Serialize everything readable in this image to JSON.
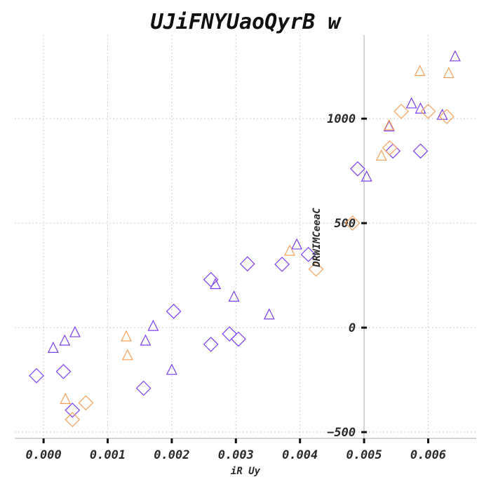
{
  "chart_data": {
    "type": "scatter",
    "title": "UJiFNYUaoQyrB w",
    "xlabel": "iR Uy",
    "ylabel": "DRWIMCeeaC",
    "xlim": [
      -0.00045,
      0.00675
    ],
    "ylim": [
      -530,
      1400
    ],
    "xticks": [
      {
        "value": 0.0,
        "label": "0.000"
      },
      {
        "value": 0.001,
        "label": "0.001"
      },
      {
        "value": 0.002,
        "label": "0.002"
      },
      {
        "value": 0.003,
        "label": "0.003"
      },
      {
        "value": 0.004,
        "label": "0.004"
      },
      {
        "value": 0.005,
        "label": "0.005"
      },
      {
        "value": 0.006,
        "label": "0.006"
      }
    ],
    "yticks": [
      {
        "value": -500,
        "label": "−500"
      },
      {
        "value": 0,
        "label": "0"
      },
      {
        "value": 500,
        "label": "500"
      },
      {
        "value": 1000,
        "label": "1000"
      }
    ],
    "y_axis_at_x": 0.005,
    "grid": true,
    "colors": {
      "purple": "#7b3ff2",
      "orange": "#f5a05a",
      "grid": "#cccccc",
      "axis": "#bbbbbb",
      "text": "#2a2a2a"
    },
    "series": [
      {
        "marker": "diamond",
        "color": "#7b3ff2",
        "points": [
          {
            "x": -0.00011,
            "y": -230
          },
          {
            "x": 0.00031,
            "y": -210
          },
          {
            "x": 0.00045,
            "y": -395
          },
          {
            "x": 0.00156,
            "y": -290
          },
          {
            "x": 0.00203,
            "y": 78
          },
          {
            "x": 0.00261,
            "y": 230
          },
          {
            "x": 0.00261,
            "y": -80
          },
          {
            "x": 0.0029,
            "y": -30
          },
          {
            "x": 0.00304,
            "y": -55
          },
          {
            "x": 0.00318,
            "y": 305
          },
          {
            "x": 0.00372,
            "y": 303
          },
          {
            "x": 0.00413,
            "y": 350
          },
          {
            "x": 0.0049,
            "y": 760
          },
          {
            "x": 0.00545,
            "y": 845
          },
          {
            "x": 0.00588,
            "y": 845
          }
        ]
      },
      {
        "marker": "triangle",
        "color": "#7b3ff2",
        "points": [
          {
            "x": 0.00015,
            "y": -95
          },
          {
            "x": 0.00033,
            "y": -60
          },
          {
            "x": 0.00049,
            "y": -20
          },
          {
            "x": 0.00159,
            "y": -60
          },
          {
            "x": 0.00171,
            "y": 10
          },
          {
            "x": 0.002,
            "y": -200
          },
          {
            "x": 0.00268,
            "y": 210
          },
          {
            "x": 0.00297,
            "y": 150
          },
          {
            "x": 0.00352,
            "y": 65
          },
          {
            "x": 0.00395,
            "y": 400
          },
          {
            "x": 0.00504,
            "y": 725
          },
          {
            "x": 0.00539,
            "y": 965
          },
          {
            "x": 0.00574,
            "y": 1075
          },
          {
            "x": 0.00588,
            "y": 1050
          },
          {
            "x": 0.00622,
            "y": 1020
          },
          {
            "x": 0.00642,
            "y": 1300
          }
        ]
      },
      {
        "marker": "diamond",
        "color": "#f5a05a",
        "points": [
          {
            "x": 0.00045,
            "y": -440
          },
          {
            "x": 0.00066,
            "y": -360
          },
          {
            "x": 0.00425,
            "y": 280
          },
          {
            "x": 0.00482,
            "y": 500
          },
          {
            "x": 0.0054,
            "y": 860
          },
          {
            "x": 0.00558,
            "y": 1035
          },
          {
            "x": 0.006,
            "y": 1035
          },
          {
            "x": 0.00629,
            "y": 1010
          }
        ]
      },
      {
        "marker": "triangle",
        "color": "#f5a05a",
        "points": [
          {
            "x": 0.00034,
            "y": -340
          },
          {
            "x": 0.00129,
            "y": -40
          },
          {
            "x": 0.00131,
            "y": -130
          },
          {
            "x": 0.00384,
            "y": 370
          },
          {
            "x": 0.00527,
            "y": 825
          },
          {
            "x": 0.00539,
            "y": 970
          },
          {
            "x": 0.00587,
            "y": 1230
          },
          {
            "x": 0.00632,
            "y": 1220
          }
        ]
      }
    ]
  }
}
